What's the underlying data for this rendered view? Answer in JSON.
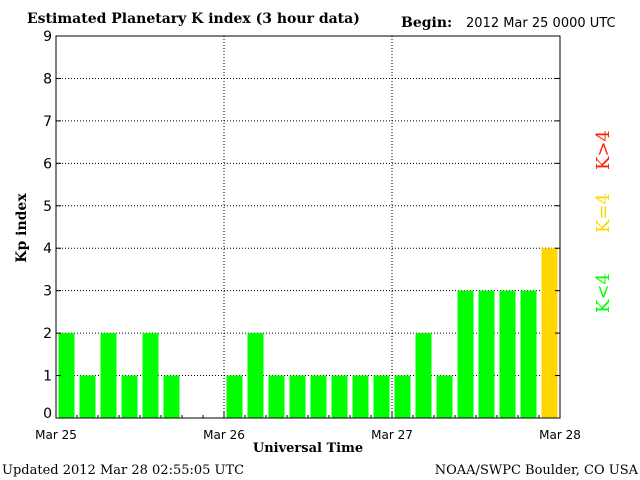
{
  "colors": {
    "quiet": "#00ff00",
    "moderate": "#ffd700",
    "storm": "#ff2200",
    "axis": "#000000",
    "grid": "#000000",
    "background": "#ffffff"
  },
  "header": {
    "title": "Estimated Planetary K index (3 hour data)",
    "begin_label": "Begin:",
    "begin_value": "2012 Mar 25 0000 UTC"
  },
  "footer": {
    "updated": "Updated 2012 Mar 28 02:55:05 UTC",
    "source": "NOAA/SWPC Boulder, CO USA"
  },
  "legend": {
    "placement": "right",
    "items": [
      {
        "label": "K<4",
        "color": "#00ff00"
      },
      {
        "label": "K=4",
        "color": "#ffd700"
      },
      {
        "label": "K>4",
        "color": "#ff2200"
      }
    ]
  },
  "chart_data": {
    "type": "bar",
    "title": "Estimated Planetary K index (3 hour data)",
    "xlabel": "Universal Time",
    "ylabel": "Kp index",
    "ylim": [
      0,
      9
    ],
    "yticks": [
      0,
      1,
      2,
      3,
      4,
      5,
      6,
      7,
      8,
      9
    ],
    "xticks": [
      "Mar 25",
      "Mar 26",
      "Mar 27",
      "Mar 28"
    ],
    "grid": true,
    "slots_per_day": 8,
    "days": 3,
    "values": [
      2,
      1,
      2,
      1,
      2,
      1,
      null,
      null,
      1,
      2,
      1,
      1,
      1,
      1,
      1,
      1,
      1,
      2,
      1,
      3,
      3,
      3,
      3,
      4
    ]
  }
}
